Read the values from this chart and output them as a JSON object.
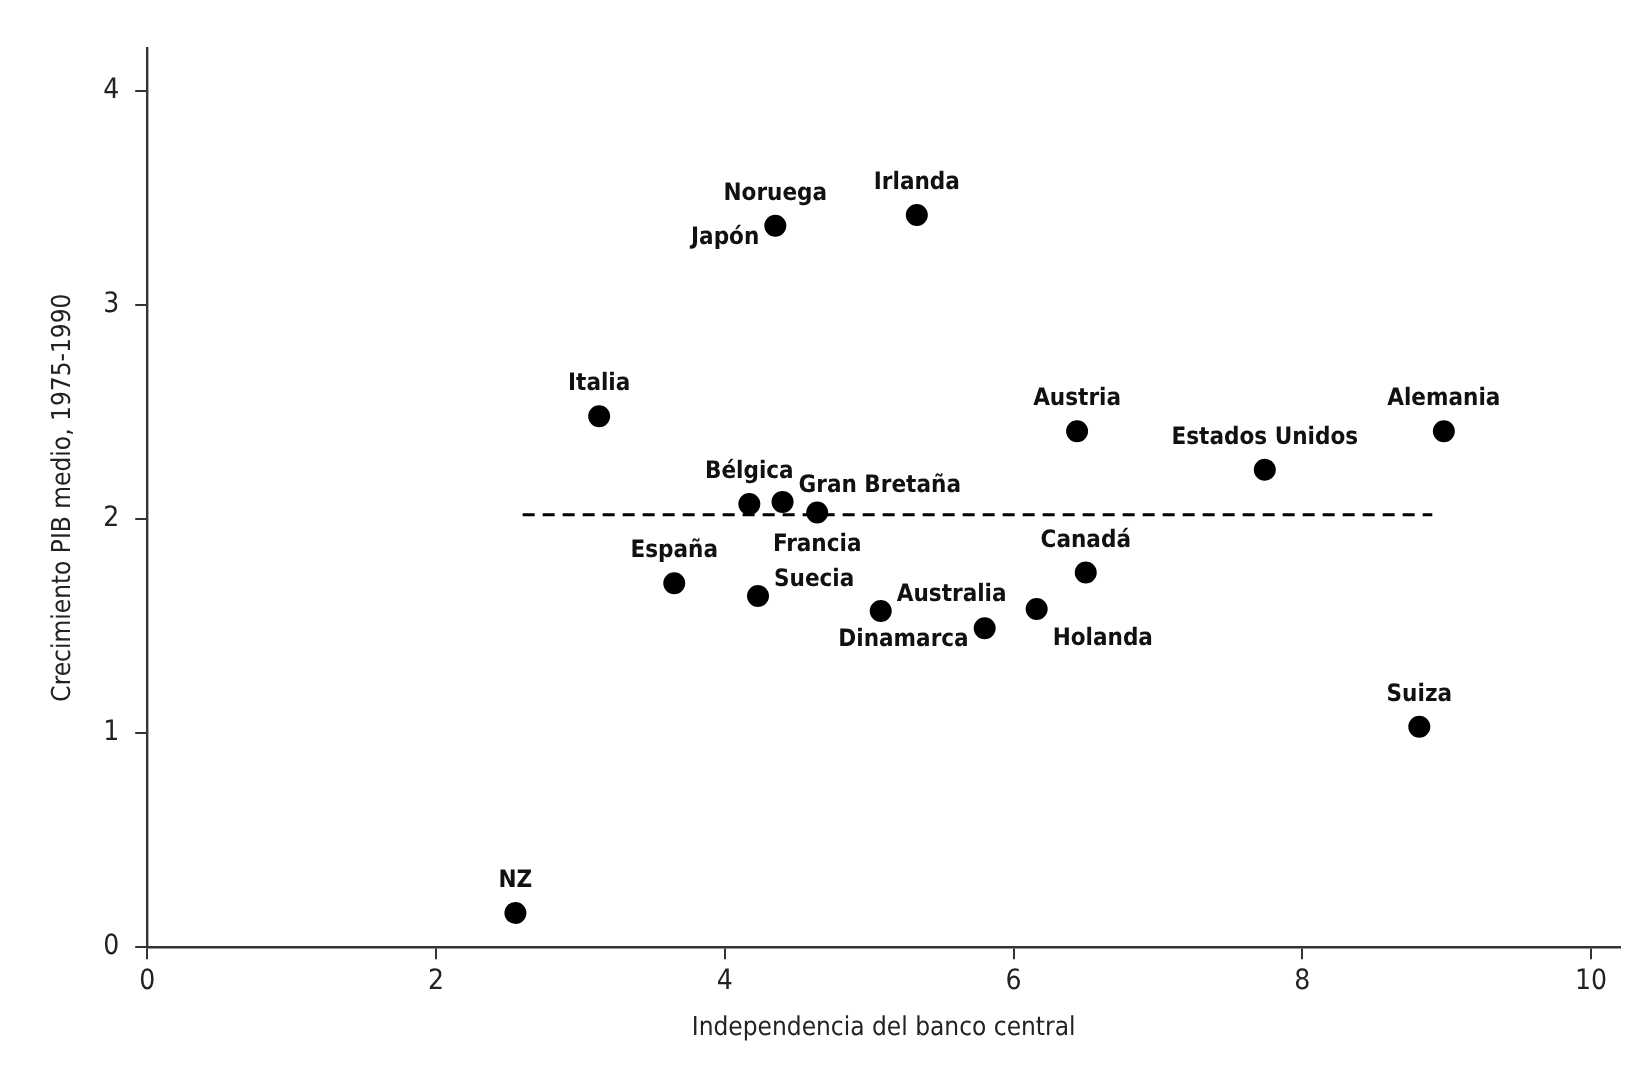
{
  "chart_data": {
    "type": "scatter",
    "xlabel": "Independencia del banco central",
    "ylabel": "Crecimiento PIB medio, 1975-1990",
    "xlim": [
      0,
      10.2
    ],
    "ylim": [
      0,
      4.2
    ],
    "xticks": [
      0,
      2,
      4,
      6,
      8,
      10
    ],
    "yticks": [
      0,
      1,
      2,
      3,
      4
    ],
    "grid": false,
    "legend": false,
    "marker": "circle",
    "series": [
      {
        "color": "#000000",
        "x": [
          2.55,
          3.13,
          3.65,
          4.17,
          4.4,
          4.64,
          4.23,
          4.35,
          5.33,
          5.08,
          5.8,
          6.16,
          6.44,
          6.5,
          7.74,
          8.98,
          8.81
        ],
        "values": [
          0.16,
          2.48,
          1.7,
          2.07,
          2.08,
          2.03,
          1.64,
          3.37,
          3.42,
          1.57,
          1.49,
          1.58,
          2.41,
          1.75,
          2.23,
          2.41,
          1.03
        ]
      },
      {
        "type": "line",
        "color": "#000000",
        "line_style": "dashed",
        "marker": "none",
        "x": [
          2.6,
          8.9
        ],
        "values": [
          2.02,
          2.02
        ]
      }
    ],
    "annotations": [
      {
        "text": "NZ",
        "x": 2.55,
        "y": 0.16
      },
      {
        "text": "Italia",
        "x": 3.13,
        "y": 2.48
      },
      {
        "text": "España",
        "x": 3.65,
        "y": 1.7
      },
      {
        "text": "Bélgica",
        "x": 4.17,
        "y": 2.07
      },
      {
        "text": "Gran Bretaña",
        "x": 4.4,
        "y": 2.08
      },
      {
        "text": "Francia",
        "x": 4.64,
        "y": 2.03
      },
      {
        "text": "Suecia",
        "x": 4.23,
        "y": 1.64
      },
      {
        "text": "Noruega",
        "x": 4.35,
        "y": 3.37
      },
      {
        "text": "Japón",
        "x": 4.35,
        "y": 3.37
      },
      {
        "text": "Irlanda",
        "x": 5.33,
        "y": 3.42
      },
      {
        "text": "Australia",
        "x": 5.08,
        "y": 1.57
      },
      {
        "text": "Dinamarca",
        "x": 5.8,
        "y": 1.49
      },
      {
        "text": "Holanda",
        "x": 6.16,
        "y": 1.58
      },
      {
        "text": "Austria",
        "x": 6.44,
        "y": 2.41
      },
      {
        "text": "Canadá",
        "x": 6.5,
        "y": 1.75
      },
      {
        "text": "Estados Unidos",
        "x": 7.74,
        "y": 2.23
      },
      {
        "text": "Alemania",
        "x": 8.98,
        "y": 2.41
      },
      {
        "text": "Suiza",
        "x": 8.81,
        "y": 1.03
      }
    ]
  }
}
